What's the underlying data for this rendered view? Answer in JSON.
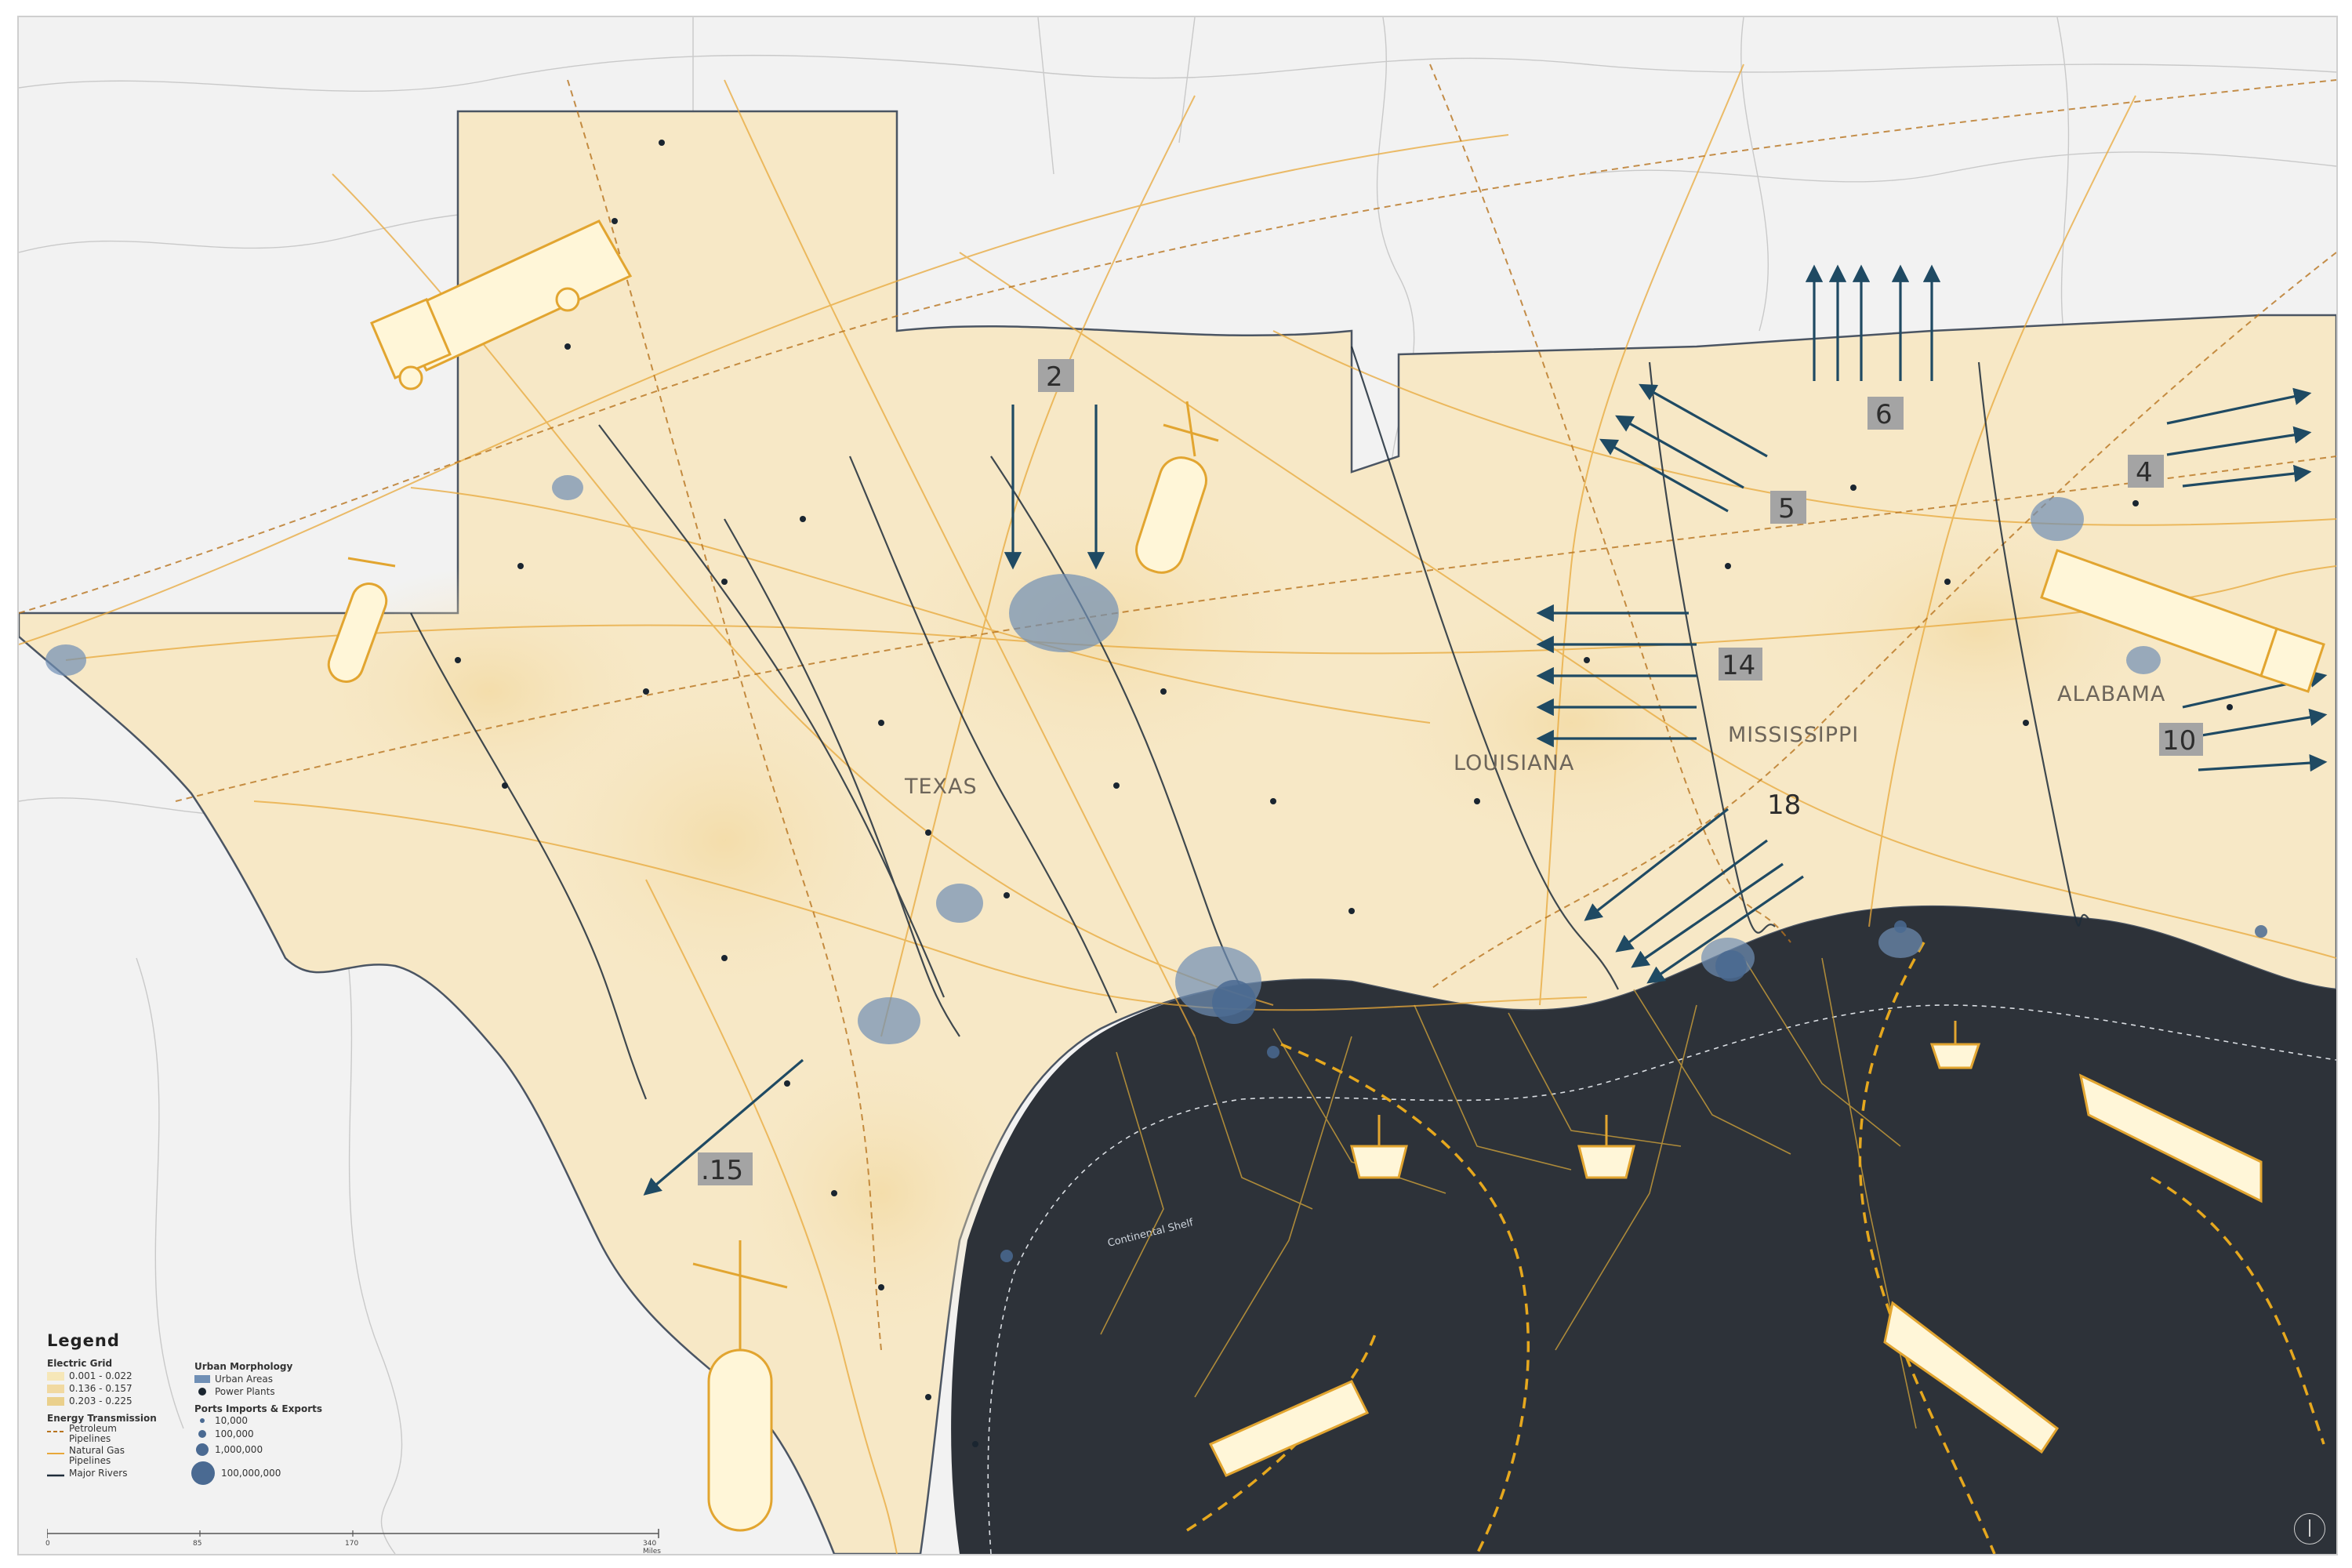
{
  "map": {
    "state_labels": [
      "TEXAS",
      "LOUISIANA",
      "MISSISSIPPI",
      "ALABAMA"
    ],
    "flow_numbers": [
      "2",
      "6",
      "5",
      "4",
      "14",
      "18",
      "10",
      ".15"
    ],
    "shelf_label": "Continental Shelf"
  },
  "legend": {
    "title": "Legend",
    "electric_grid": {
      "heading": "Electric Grid",
      "classes": [
        "0.001 - 0.022",
        "0.136 - 0.157",
        "0.203 - 0.225"
      ],
      "colors": [
        "#f6e7b8",
        "#f1d9a1",
        "#ead08c"
      ]
    },
    "energy_transmission": {
      "heading": "Energy Transmission",
      "petroleum": "Petroleum Pipelines",
      "natural_gas": "Natural Gas Pipelines",
      "rivers": "Major Rivers"
    },
    "urban_morphology": {
      "heading": "Urban Morphology",
      "urban_areas": "Urban Areas",
      "power_plants": "Power Plants"
    },
    "ports": {
      "heading": "Ports Imports & Exports",
      "sizes": [
        "10,000",
        "100,000",
        "1,000,000",
        "100,000,000"
      ]
    }
  },
  "scale_bar": {
    "ticks": [
      "0",
      "85",
      "170",
      "340 Miles"
    ]
  },
  "colors": {
    "gulf": "#2d3239",
    "land_outside": "#f2f2f2",
    "energy_region": "#f7e8c6",
    "pipeline": "#e8a83a",
    "flow_arrow": "#1f4a63",
    "urban": "#6f8fb5",
    "river": "#1f2d3a"
  }
}
